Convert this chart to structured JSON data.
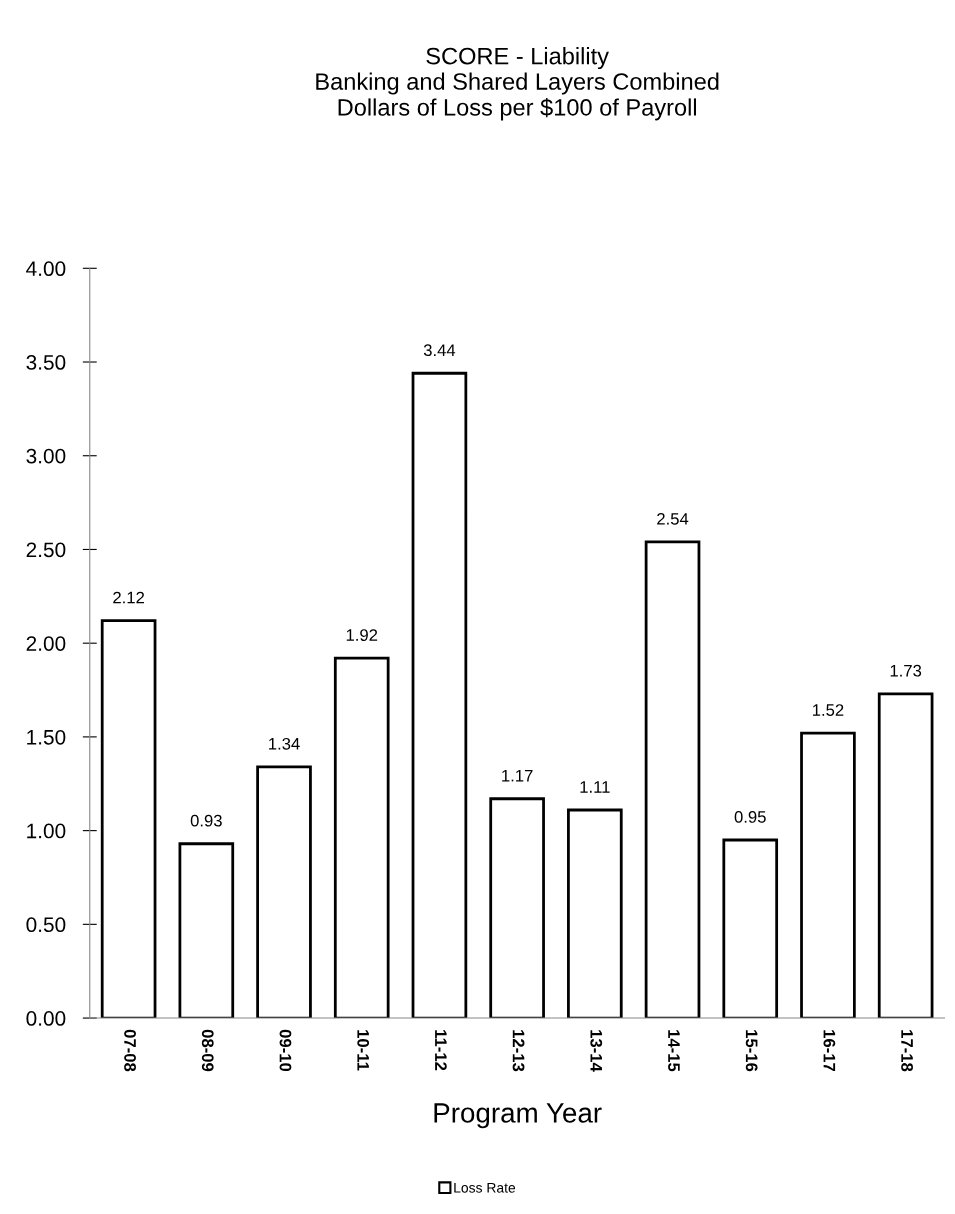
{
  "chart_data": {
    "type": "bar",
    "title": "SCORE - Liability\nBanking and Shared Layers Combined\nDollars of Loss per $100 of Payroll",
    "xlabel": "Program Year",
    "categories": [
      "07-08",
      "08-09",
      "09-10",
      "10-11",
      "11-12",
      "12-13",
      "13-14",
      "14-15",
      "15-16",
      "16-17",
      "17-18"
    ],
    "series": [
      {
        "name": "Loss Rate",
        "color": "#ffffff",
        "values": [
          2.12,
          0.93,
          1.34,
          1.92,
          3.44,
          1.17,
          1.11,
          2.54,
          0.95,
          1.52,
          1.73
        ]
      }
    ],
    "ylim": [
      0,
      4
    ],
    "yticks": [
      {
        "value": 0,
        "label": "0.00"
      },
      {
        "value": 0.5,
        "label": "0.50"
      },
      {
        "value": 1,
        "label": "1.00"
      },
      {
        "value": 1.5,
        "label": "1.50"
      },
      {
        "value": 2,
        "label": "2.00"
      },
      {
        "value": 2.5,
        "label": "2.50"
      },
      {
        "value": 3,
        "label": "3.00"
      },
      {
        "value": 3.5,
        "label": "3.50"
      },
      {
        "value": 4,
        "label": "4.00"
      }
    ],
    "data_labels": true,
    "grid": false,
    "legend": "bottom"
  }
}
